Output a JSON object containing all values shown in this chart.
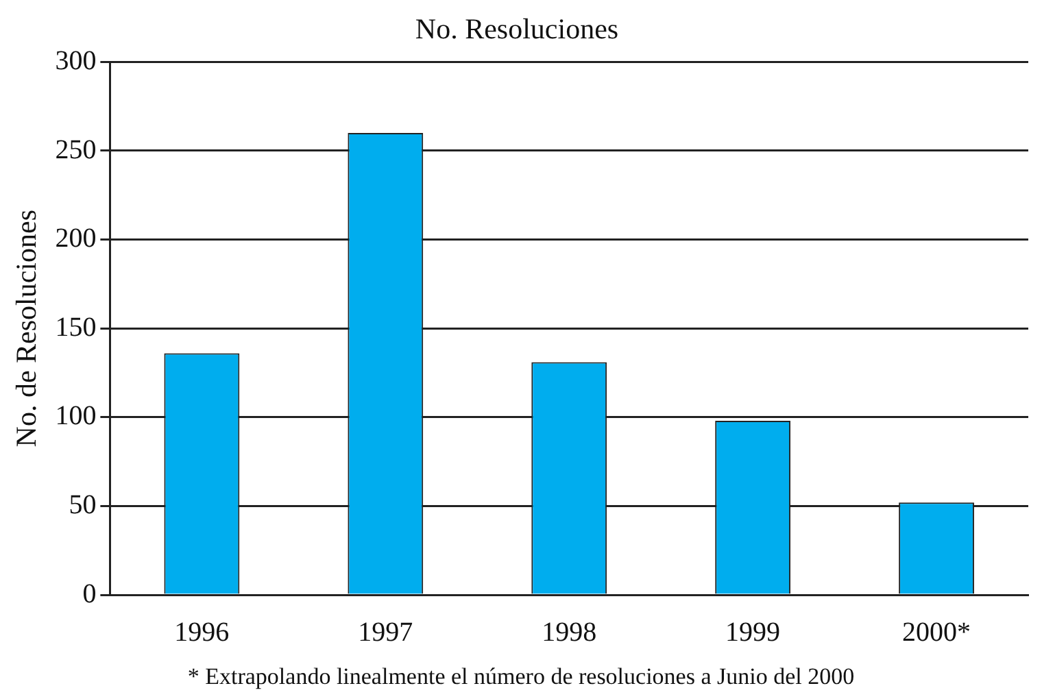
{
  "chart_data": {
    "type": "bar",
    "title": "No. Resoluciones",
    "ylabel": "No. de Resoluciones",
    "categories": [
      "1996",
      "1997",
      "1998",
      "1999",
      "2000*"
    ],
    "values": [
      136,
      260,
      131,
      98,
      52
    ],
    "color": "#00adee",
    "ylim": [
      0,
      300
    ],
    "yticks": [
      0,
      50,
      100,
      150,
      200,
      250,
      300
    ],
    "grid": "y",
    "legend": false,
    "annotations": [
      "* Extrapolando linealmente el número de resoluciones a Junio del 2000"
    ]
  }
}
